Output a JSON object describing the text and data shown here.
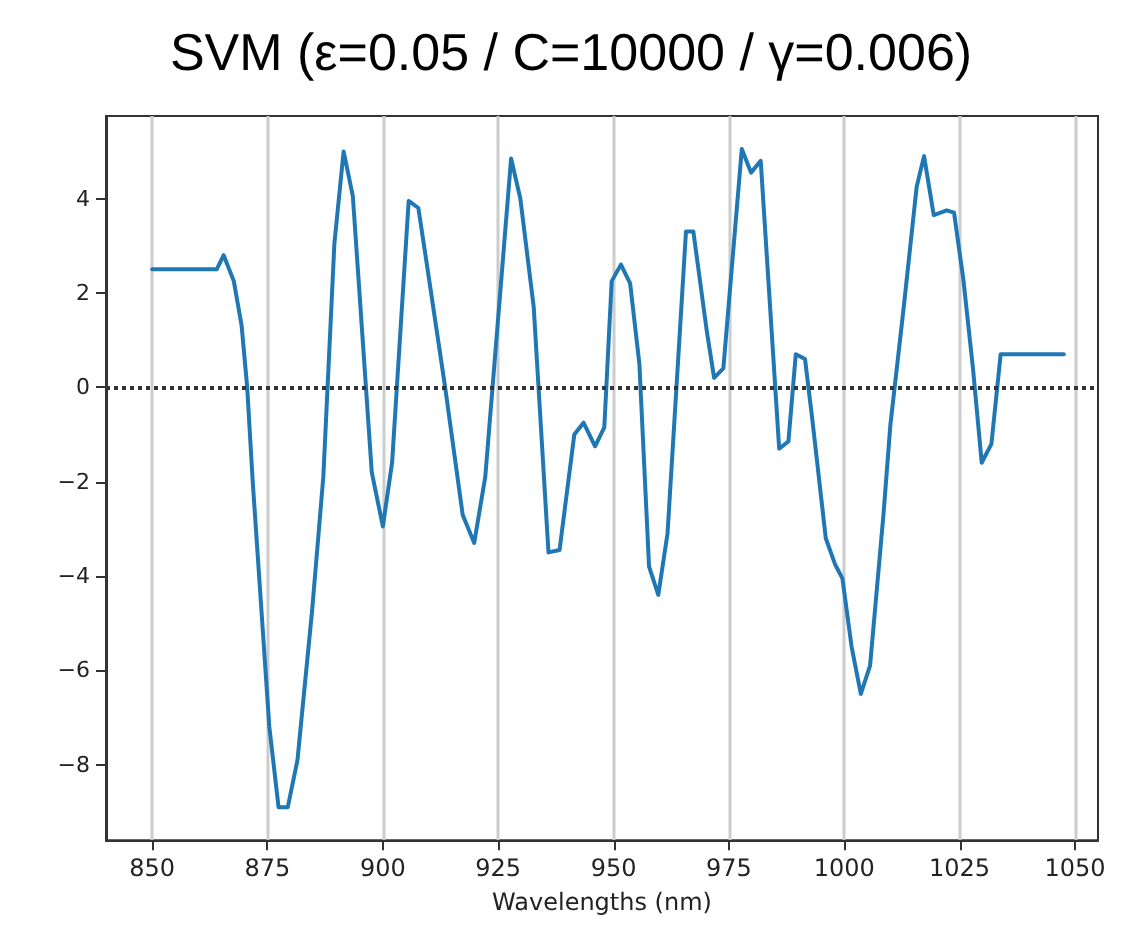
{
  "chart_data": {
    "type": "line",
    "title": "SVM (ε=0.05 / C=10000 / γ=0.006)",
    "xlabel": "Wavelengths (nm)",
    "xlim": [
      840,
      1055
    ],
    "xticks": [
      850,
      875,
      900,
      925,
      950,
      975,
      1000,
      1025,
      1050
    ],
    "ylim": [
      -9.6,
      5.75
    ],
    "yticks": [
      -8,
      -6,
      -4,
      -2,
      0,
      2,
      4
    ],
    "grid": "x",
    "marker": "none",
    "line_style": "solid",
    "ref_lines": [
      {
        "axis": "y",
        "value": 0,
        "color": "#333333",
        "line_style": "dotted"
      }
    ],
    "series": [
      {
        "color": "#1f77b4",
        "x": [
          850,
          864,
          865.5,
          867.7,
          869.4,
          870.6,
          871.8,
          875.4,
          877.4,
          879.4,
          881.5,
          884.7,
          887.1,
          889.5,
          891.5,
          893.5,
          897.6,
          900,
          902,
          905.6,
          907.7,
          909.7,
          913.5,
          917.3,
          919.8,
          922.2,
          927.8,
          929.8,
          932.7,
          935.9,
          938.3,
          941.5,
          943.5,
          946,
          948,
          949.6,
          951.6,
          953.6,
          955.6,
          957.7,
          959.7,
          961.7,
          965.7,
          967.3,
          970.2,
          971.8,
          973.8,
          977.8,
          979.8,
          981.9,
          985.9,
          987.9,
          989.5,
          991.5,
          993.1,
          996,
          998,
          999.6,
          1001.6,
          1003.6,
          1005.6,
          1008.5,
          1010,
          1012.9,
          1015.7,
          1017.3,
          1019.4,
          1022.2,
          1023.8,
          1025.8,
          1027.9,
          1029.8,
          1031.9,
          1033.9,
          1047.6
        ],
        "values": [
          2.5,
          2.5,
          2.8,
          2.25,
          1.3,
          0,
          -2,
          -7.2,
          -8.9,
          -8.9,
          -7.9,
          -4.7,
          -1.9,
          3.05,
          5.0,
          4.05,
          -1.8,
          -2.95,
          -1.6,
          3.95,
          3.8,
          2.5,
          0,
          -2.7,
          -3.3,
          -1.9,
          4.85,
          4.0,
          1.7,
          -3.5,
          -3.45,
          -1.0,
          -0.75,
          -1.25,
          -0.85,
          2.25,
          2.6,
          2.2,
          0.5,
          -3.8,
          -4.4,
          -3.1,
          3.3,
          3.3,
          1.2,
          0.2,
          0.4,
          5.05,
          4.55,
          4.8,
          -1.3,
          -1.15,
          0.7,
          0.6,
          -0.7,
          -3.2,
          -3.75,
          -4.05,
          -5.5,
          -6.5,
          -5.9,
          -2.7,
          -0.8,
          1.7,
          4.25,
          4.9,
          3.65,
          3.75,
          3.7,
          2.3,
          0.4,
          -1.6,
          -1.2,
          0.7,
          0.7
        ]
      }
    ]
  }
}
